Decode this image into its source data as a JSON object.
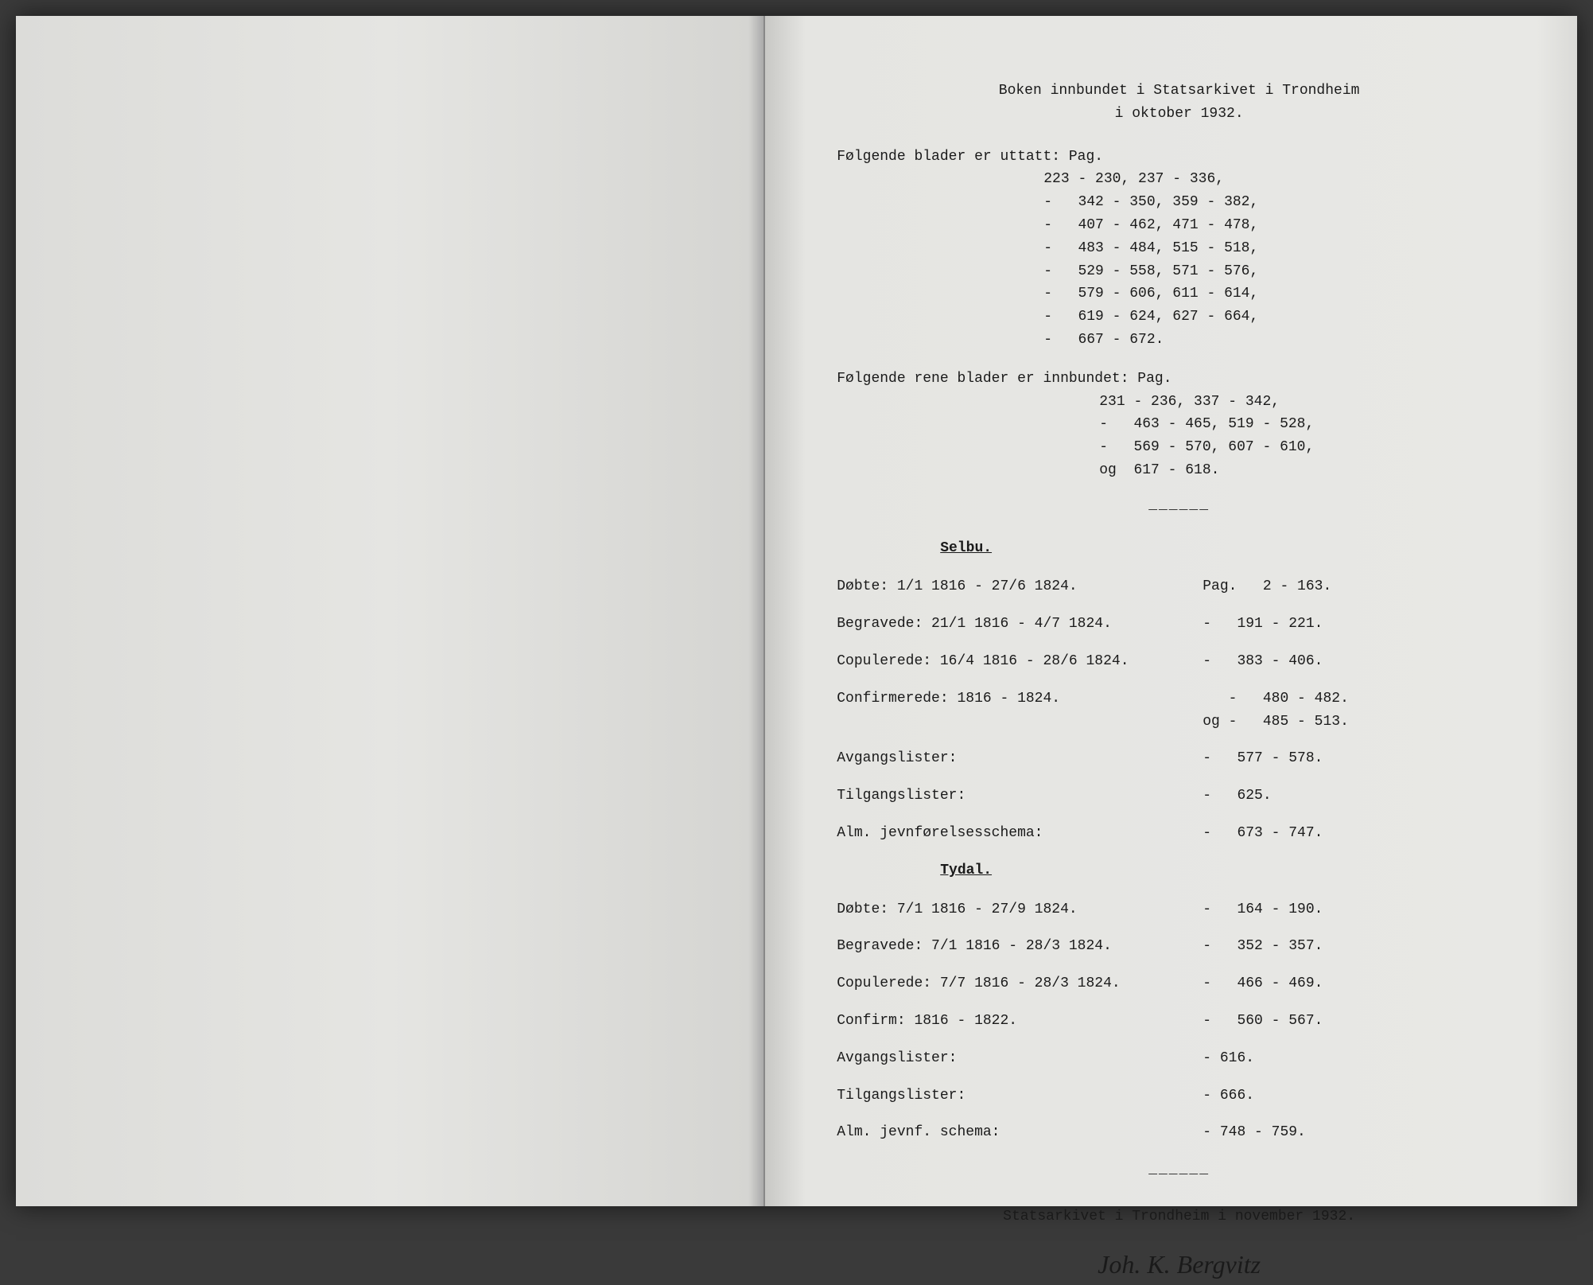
{
  "header": {
    "line1": "Boken innbundet i Statsarkivet i Trondheim",
    "line2": "i oktober 1932."
  },
  "omitted": {
    "intro": "Følgende blader er uttatt: Pag. ",
    "ranges": "223 - 230, 237 - 336,\n-   342 - 350, 359 - 382,\n-   407 - 462, 471 - 478,\n-   483 - 484, 515 - 518,\n-   529 - 558, 571 - 576,\n-   579 - 606, 611 - 614,\n-   619 - 624, 627 - 664,\n-   667 - 672."
  },
  "bound": {
    "intro": "Følgende rene blader er innbundet: Pag. ",
    "ranges": "231 - 236, 337 - 342,\n-   463 - 465, 519 - 528,\n-   569 - 570, 607 - 610,\nog  617 - 618."
  },
  "divider": "______",
  "sections": {
    "selbu": {
      "title": "Selbu.",
      "entries": [
        {
          "label": "Døbte: 1/1 1816 - 27/6 1824.",
          "pages": "Pag.   2 - 163."
        },
        {
          "label": "Begravede: 21/1 1816 - 4/7 1824.",
          "pages": "-   191 - 221."
        },
        {
          "label": "Copulerede: 16/4 1816 - 28/6 1824.",
          "pages": "-   383 - 406."
        },
        {
          "label": "Confirmerede:  1816 - 1824.",
          "pages": "-   480 - 482.\nog -   485 - 513."
        },
        {
          "label": "Avgangslister:",
          "pages": "-   577 - 578."
        },
        {
          "label": "Tilgangslister:",
          "pages": "-   625."
        },
        {
          "label": "Alm. jevnførelsesschema:",
          "pages": "-   673 - 747."
        }
      ]
    },
    "tydal": {
      "title": "Tydal.",
      "entries": [
        {
          "label": "Døbte: 7/1 1816 - 27/9 1824.",
          "pages": "-   164 - 190."
        },
        {
          "label": "Begravede: 7/1 1816 - 28/3 1824.",
          "pages": "-   352 - 357."
        },
        {
          "label": "Copulerede: 7/7 1816 - 28/3 1824.",
          "pages": "-   466 - 469."
        },
        {
          "label": "Confirm:   1816 - 1822.",
          "pages": "-   560 - 567."
        },
        {
          "label": "Avgangslister:",
          "pages": "- 616."
        },
        {
          "label": "Tilgangslister:",
          "pages": "- 666."
        },
        {
          "label": "Alm. jevnf. schema:",
          "pages": "- 748 - 759."
        }
      ]
    }
  },
  "footer": "Statsarkivet i Trondheim i november 1932.",
  "signature": "Joh. K. Bergvitz"
}
